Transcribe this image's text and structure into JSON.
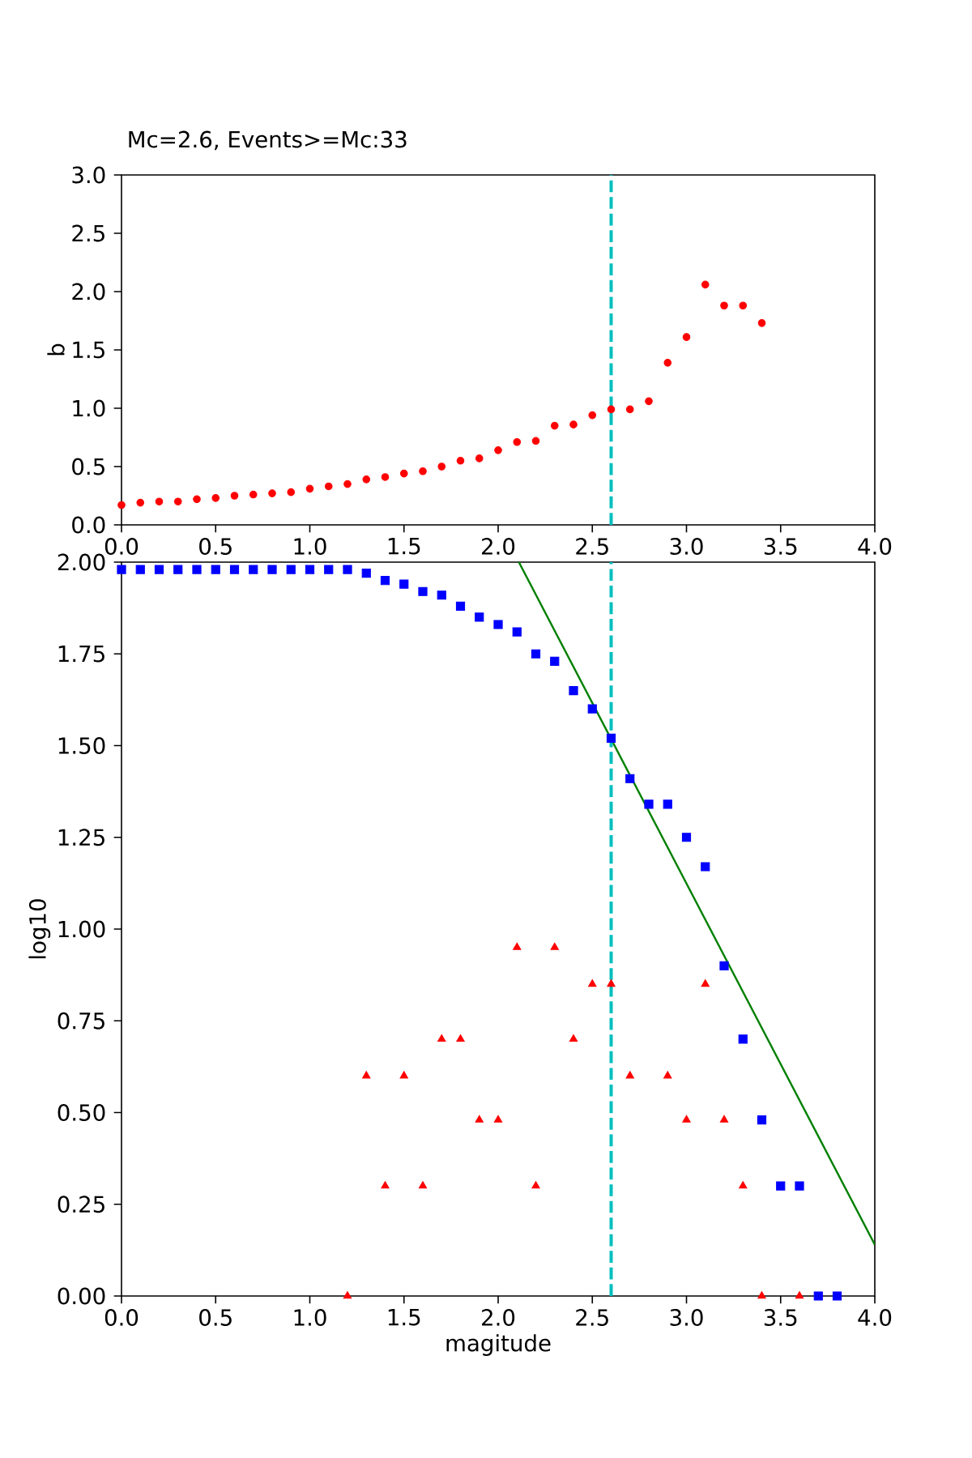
{
  "chart_data": [
    {
      "type": "scatter",
      "title": "Mc=2.6, Events>=Mc:33",
      "ylabel": "b",
      "color": "#ff0000",
      "marker": "circle",
      "x": [
        0.0,
        0.1,
        0.2,
        0.3,
        0.4,
        0.5,
        0.6,
        0.7,
        0.8,
        0.9,
        1.0,
        1.1,
        1.2,
        1.3,
        1.4,
        1.5,
        1.6,
        1.7,
        1.8,
        1.9,
        2.0,
        2.1,
        2.2,
        2.3,
        2.4,
        2.5,
        2.6,
        2.7,
        2.8,
        2.9,
        3.0,
        3.1,
        3.2,
        3.3,
        3.4
      ],
      "values": [
        0.17,
        0.19,
        0.2,
        0.2,
        0.22,
        0.23,
        0.25,
        0.26,
        0.27,
        0.28,
        0.31,
        0.33,
        0.35,
        0.39,
        0.41,
        0.44,
        0.46,
        0.5,
        0.55,
        0.57,
        0.64,
        0.71,
        0.72,
        0.85,
        0.86,
        0.94,
        0.99,
        0.99,
        1.06,
        1.39,
        1.61,
        2.06,
        1.88,
        1.88,
        1.73
      ],
      "xlim": [
        0,
        4
      ],
      "ylim": [
        0,
        3
      ],
      "xticks": [
        {
          "value": 0,
          "label": "0.0"
        },
        {
          "value": 0.5,
          "label": "0.5"
        },
        {
          "value": 1,
          "label": "1.0"
        },
        {
          "value": 1.5,
          "label": "1.5"
        },
        {
          "value": 2,
          "label": "2.0"
        },
        {
          "value": 2.5,
          "label": "2.5"
        },
        {
          "value": 3,
          "label": "3.0"
        },
        {
          "value": 3.5,
          "label": "3.5"
        },
        {
          "value": 4,
          "label": "4.0"
        }
      ],
      "yticks": [
        {
          "value": 0,
          "label": "0.0"
        },
        {
          "value": 0.5,
          "label": "0.5"
        },
        {
          "value": 1,
          "label": "1.0"
        },
        {
          "value": 1.5,
          "label": "1.5"
        },
        {
          "value": 2,
          "label": "2.0"
        },
        {
          "value": 2.5,
          "label": "2.5"
        },
        {
          "value": 3,
          "label": "3.0"
        }
      ],
      "ref_lines": [
        {
          "axis": "x",
          "value": 2.6,
          "color": "#00bfbf",
          "line_style": "dashed"
        }
      ]
    },
    {
      "type": "scatter",
      "xlabel": "magitude",
      "ylabel": "log10",
      "series": [
        {
          "color": "#0000ff",
          "marker": "square",
          "x": [
            0.0,
            0.1,
            0.2,
            0.3,
            0.4,
            0.5,
            0.6,
            0.7,
            0.8,
            0.9,
            1.0,
            1.1,
            1.2,
            1.3,
            1.4,
            1.5,
            1.6,
            1.7,
            1.8,
            1.9,
            2.0,
            2.1,
            2.2,
            2.3,
            2.4,
            2.5,
            2.6,
            2.7,
            2.8,
            2.9,
            3.0,
            3.1,
            3.2,
            3.3,
            3.4,
            3.5,
            3.6,
            3.7,
            3.8
          ],
          "values": [
            1.98,
            1.98,
            1.98,
            1.98,
            1.98,
            1.98,
            1.98,
            1.98,
            1.98,
            1.98,
            1.98,
            1.98,
            1.98,
            1.97,
            1.95,
            1.94,
            1.92,
            1.91,
            1.88,
            1.85,
            1.83,
            1.81,
            1.75,
            1.73,
            1.65,
            1.6,
            1.52,
            1.41,
            1.34,
            1.34,
            1.25,
            1.17,
            0.9,
            0.7,
            0.48,
            0.3,
            0.3,
            0,
            0
          ]
        },
        {
          "color": "#ff0000",
          "marker": "triangle",
          "x": [
            1.2,
            1.3,
            1.4,
            1.5,
            1.6,
            1.7,
            1.8,
            1.9,
            2.0,
            2.1,
            2.2,
            2.3,
            2.4,
            2.5,
            2.6,
            2.7,
            2.9,
            3.0,
            3.1,
            3.2,
            3.3,
            3.4,
            3.6
          ],
          "values": [
            0,
            0.6,
            0.3,
            0.6,
            0.3,
            0.7,
            0.7,
            0.48,
            0.48,
            0.95,
            0.3,
            0.95,
            0.7,
            0.85,
            0.85,
            0.6,
            0.6,
            0.48,
            0.85,
            0.48,
            0.3,
            0,
            0
          ]
        },
        {
          "type": "line",
          "color": "#008000",
          "x": [
            2.11,
            4.0
          ],
          "values": [
            2.0,
            0.14
          ]
        }
      ],
      "xlim": [
        0,
        4
      ],
      "ylim": [
        0,
        2
      ],
      "xticks": [
        {
          "value": 0,
          "label": "0.0"
        },
        {
          "value": 0.5,
          "label": "0.5"
        },
        {
          "value": 1,
          "label": "1.0"
        },
        {
          "value": 1.5,
          "label": "1.5"
        },
        {
          "value": 2,
          "label": "2.0"
        },
        {
          "value": 2.5,
          "label": "2.5"
        },
        {
          "value": 3,
          "label": "3.0"
        },
        {
          "value": 3.5,
          "label": "3.5"
        },
        {
          "value": 4,
          "label": "4.0"
        }
      ],
      "yticks": [
        {
          "value": 0,
          "label": "0.00"
        },
        {
          "value": 0.25,
          "label": "0.25"
        },
        {
          "value": 0.5,
          "label": "0.50"
        },
        {
          "value": 0.75,
          "label": "0.75"
        },
        {
          "value": 1,
          "label": "1.00"
        },
        {
          "value": 1.25,
          "label": "1.25"
        },
        {
          "value": 1.5,
          "label": "1.50"
        },
        {
          "value": 1.75,
          "label": "1.75"
        },
        {
          "value": 2,
          "label": "2.00"
        }
      ],
      "ref_lines": [
        {
          "axis": "x",
          "value": 2.6,
          "color": "#00bfbf",
          "line_style": "dashed"
        }
      ]
    }
  ]
}
